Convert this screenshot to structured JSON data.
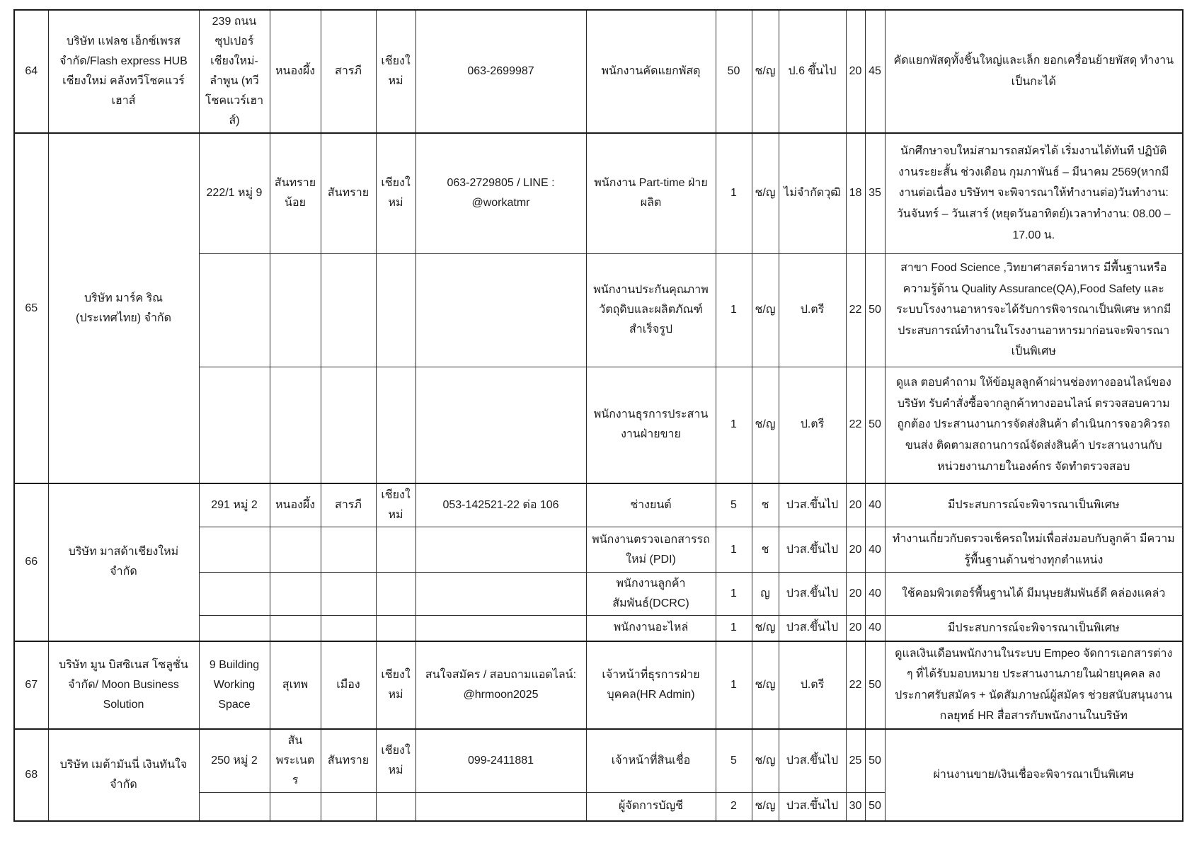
{
  "document": {
    "type": "job-listings-table",
    "province_page": "เชียงใหม่",
    "text_color": "#1a1a1a",
    "grid_color": "#2b2b2b",
    "companies": [
      {
        "no": "64",
        "name": "บริษัท แฟลช เอ็กซ์เพรส จำกัด/Flash express HUB เชียงใหม่ คลังทวีโชคแวร์เฮาส์",
        "address": "239 ถนน ซุปเปอร์เชียงใหม่-ลำพูน (ทวีโชคแวร์เฮาส์)",
        "subdistrict": "หนองผึ้ง",
        "district": "สารภี",
        "province": "เชียงใหม่",
        "phone": "063-2699987",
        "jobs": [
          {
            "position": "พนักงานคัดแยกพัสดุ",
            "openings": "50",
            "gender": "ช/ญ",
            "education": "ป.6 ขึ้นไป",
            "age_min": "20",
            "age_max": "45",
            "note": "คัดแยกพัสดุทั้งชิ้นใหญ่และเล็ก ยอกเครื่อนย้ายพัสดุ ทำงานเป็นกะได้"
          }
        ]
      },
      {
        "no": "65",
        "name": "บริษัท มาร์ค ริณ (ประเทศไทย) จำกัด",
        "address": "222/1 หมู่ 9",
        "subdistrict": "สันทรายน้อย",
        "district": "สันทราย",
        "province": "เชียงใหม่",
        "phone": "063-2729805 / LINE : @workatmr",
        "jobs": [
          {
            "position": "พนักงาน Part-time ฝ่ายผลิต",
            "openings": "1",
            "gender": "ช/ญ",
            "education": "ไม่จำกัดวุฒิ",
            "age_min": "18",
            "age_max": "35",
            "note": "นักศึกษาจบใหม่สามารถสมัครได้ เริ่มงานได้ทันที ปฏิบัติงานระยะสั้น ช่วงเดือน กุมภาพันธ์ – มีนาคม 2569(หากมีงานต่อเนื่อง บริษัทฯ จะพิจารณาให้ทำงานต่อ)วันทำงาน: วันจันทร์ – วันเสาร์ (หยุดวันอาทิตย์)เวลาทำงาน: 08.00 – 17.00 น."
          },
          {
            "position": "พนักงานประกันคุณภาพวัตถุดิบและผลิตภัณฑ์สำเร็จรูป",
            "openings": "1",
            "gender": "ช/ญ",
            "education": "ป.ตรี",
            "age_min": "22",
            "age_max": "50",
            "note": "สาขา Food Science ,วิทยาศาสตร์อาหาร มีพื้นฐานหรือความรู้ด้าน Quality Assurance(QA),Food Safety และระบบโรงงานอาหารจะได้รับการพิจารณาเป็นพิเศษ หากมีประสบการณ์ทำงานในโรงงานอาหารมาก่อนจะพิจารณาเป็นพิเศษ"
          },
          {
            "position": "พนักงานธุรการประสานงานฝ่ายขาย",
            "openings": "1",
            "gender": "ช/ญ",
            "education": "ป.ตรี",
            "age_min": "22",
            "age_max": "50",
            "note": "ดูแล ตอบคำถาม ให้ข้อมูลลูกค้าผ่านช่องทางออนไลน์ของบริษัท รับคำสั่งซื้อจากลูกค้าทางออนไลน์ ตรวจสอบความถูกต้อง ประสานงานการจัดส่งสินค้า ดำเนินการจอวคิวรถขนส่ง ติดตามสถานการณ์จัดส่งสินค้า ประสานงานกับหน่วยงานภายในองค์กร จัดทำตรวจสอบ"
          }
        ]
      },
      {
        "no": "66",
        "name": "บริษัท มาสด้าเชียงใหม่ จำกัด",
        "address": "291 หมู่ 2",
        "subdistrict": "หนองผึ้ง",
        "district": "สารภี",
        "province": "เชียงใหม่",
        "phone": "053-142521-22 ต่อ 106",
        "jobs": [
          {
            "position": "ช่างยนต์",
            "openings": "5",
            "gender": "ช",
            "education": "ปวส.ขึ้นไป",
            "age_min": "20",
            "age_max": "40",
            "note": "มีประสบการณ์จะพิจารณาเป็นพิเศษ"
          },
          {
            "position": "พนักงานตรวจเอกสารรถใหม่ (PDI)",
            "openings": "1",
            "gender": "ช",
            "education": "ปวส.ขึ้นไป",
            "age_min": "20",
            "age_max": "40",
            "note": "ทำงานเกี่ยวกับตรวจเช็ครถใหม่เพื่อส่งมอบกับลูกค้า มีความรู้พื้นฐานด้านช่างทุกตำแหน่ง"
          },
          {
            "position": "พนักงานลูกค้าสัมพันธ์(DCRC)",
            "openings": "1",
            "gender": "ญ",
            "education": "ปวส.ขึ้นไป",
            "age_min": "20",
            "age_max": "40",
            "note": "ใช้คอมพิวเตอร์พื้นฐานได้ มีมนุษยสัมพันธ์ดี คล่องแคล่ว"
          },
          {
            "position": "พนักงานอะไหล่",
            "openings": "1",
            "gender": "ช/ญ",
            "education": "ปวส.ขึ้นไป",
            "age_min": "20",
            "age_max": "40",
            "note": "มีประสบการณ์จะพิจารณาเป็นพิเศษ"
          }
        ]
      },
      {
        "no": "67",
        "name": "บริษัท มูน บิสซิเนส โซลูชั่น จำกัด/ Moon Business Solution",
        "address": "9 Building Working Space",
        "subdistrict": "สุเทพ",
        "district": "เมือง",
        "province": "เชียงใหม่",
        "phone": "สนใจสมัคร / สอบถามแอดไลน์: @hrmoon2025",
        "jobs": [
          {
            "position": "เจ้าหน้าที่ธุรการฝ่ายบุคคล(HR Admin)",
            "openings": "1",
            "gender": "ช/ญ",
            "education": "ป.ตรี",
            "age_min": "22",
            "age_max": "50",
            "note": "ดูแลเงินเดือนพนักงานในระบบ Empeo จัดการเอกสารต่าง ๆ ที่ได้รับมอบหมาย ประสานงานภายในฝ่ายบุคคล ลงประกาศรับสมัคร + นัดสัมภาษณ์ผู้สมัคร ช่วยสนับสนุนงานกลยุทธ์ HR สื่อสารกับพนักงานในบริษัท"
          }
        ]
      },
      {
        "no": "68",
        "name": "บริษัท เมต้ามันนี่ เงินทันใจ จำกัด",
        "address": "250 หมู่ 2",
        "subdistrict": "สันพระเนตร",
        "district": "สันทราย",
        "province": "เชียงใหม่",
        "phone": "099-2411881",
        "shared_note": "ผ่านงานขาย/เงินเชื่อจะพิจารณาเป็นพิเศษ",
        "jobs": [
          {
            "position": "เจ้าหน้าที่สินเชื่อ",
            "openings": "5",
            "gender": "ช/ญ",
            "education": "ปวส.ขึ้นไป",
            "age_min": "25",
            "age_max": "50"
          },
          {
            "position": "ผู้จัดการบัญชี",
            "openings": "2",
            "gender": "ช/ญ",
            "education": "ปวส.ขึ้นไป",
            "age_min": "30",
            "age_max": "50"
          }
        ]
      }
    ]
  }
}
